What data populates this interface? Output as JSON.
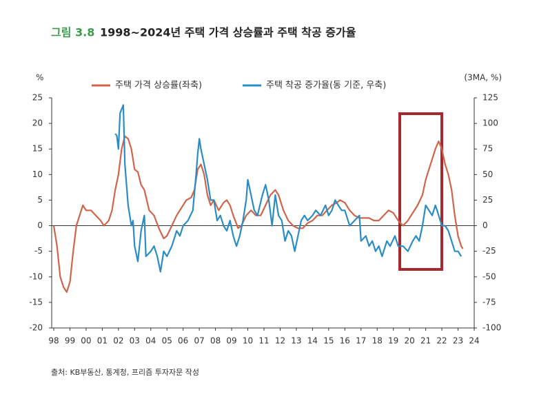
{
  "chart_data": {
    "type": "line",
    "figure_label": "그림 3.8",
    "title": "1998~2024년 주택 가격 상승률과 주택 착공 증가율",
    "y_label": "%",
    "y2_label": "(3MA, %)",
    "source": "출처: KB부동산, 통계청, 프리즘 투자자문 작성",
    "xlim": [
      1998,
      2024
    ],
    "xticks": [
      {
        "value": 1998,
        "label": "98"
      },
      {
        "value": 1999,
        "label": "99"
      },
      {
        "value": 2000,
        "label": "00"
      },
      {
        "value": 2001,
        "label": "01"
      },
      {
        "value": 2002,
        "label": "02"
      },
      {
        "value": 2003,
        "label": "03"
      },
      {
        "value": 2004,
        "label": "04"
      },
      {
        "value": 2005,
        "label": "05"
      },
      {
        "value": 2006,
        "label": "06"
      },
      {
        "value": 2007,
        "label": "07"
      },
      {
        "value": 2008,
        "label": "08"
      },
      {
        "value": 2009,
        "label": "09"
      },
      {
        "value": 2010,
        "label": "10"
      },
      {
        "value": 2011,
        "label": "11"
      },
      {
        "value": 2012,
        "label": "12"
      },
      {
        "value": 2013,
        "label": "13"
      },
      {
        "value": 2014,
        "label": "14"
      },
      {
        "value": 2015,
        "label": "15"
      },
      {
        "value": 2016,
        "label": "16"
      },
      {
        "value": 2017,
        "label": "17"
      },
      {
        "value": 2018,
        "label": "18"
      },
      {
        "value": 2019,
        "label": "19"
      },
      {
        "value": 2020,
        "label": "20"
      },
      {
        "value": 2021,
        "label": "21"
      },
      {
        "value": 2022,
        "label": "22"
      },
      {
        "value": 2023,
        "label": "23"
      },
      {
        "value": 2024,
        "label": "24"
      }
    ],
    "ylim": [
      -20,
      25
    ],
    "yticks": [
      25,
      20,
      15,
      10,
      5,
      0,
      -5,
      -10,
      -15,
      -20
    ],
    "y2lim": [
      -100,
      125
    ],
    "y2ticks": [
      125,
      100,
      75,
      50,
      25,
      0,
      -25,
      -50,
      -75,
      -100
    ],
    "series": [
      {
        "name": "주택 가격 상승률(좌축)",
        "color": "#d0644a",
        "axis": "y",
        "x": [
          1998.0,
          1998.2,
          1998.4,
          1998.6,
          1998.8,
          1999.0,
          1999.2,
          1999.4,
          1999.6,
          1999.8,
          2000.0,
          2000.3,
          2000.6,
          2000.9,
          2001.1,
          2001.4,
          2001.6,
          2001.8,
          2002.0,
          2002.2,
          2002.4,
          2002.6,
          2002.8,
          2003.0,
          2003.2,
          2003.4,
          2003.6,
          2003.9,
          2004.2,
          2004.5,
          2004.8,
          2005.0,
          2005.3,
          2005.6,
          2005.9,
          2006.2,
          2006.5,
          2006.7,
          2006.9,
          2007.1,
          2007.3,
          2007.5,
          2007.7,
          2007.9,
          2008.2,
          2008.5,
          2008.7,
          2008.9,
          2009.1,
          2009.4,
          2009.6,
          2009.9,
          2010.2,
          2010.5,
          2010.8,
          2011.1,
          2011.4,
          2011.7,
          2011.9,
          2012.2,
          2012.5,
          2012.8,
          2013.1,
          2013.4,
          2013.7,
          2014.0,
          2014.3,
          2014.6,
          2014.9,
          2015.2,
          2015.5,
          2015.7,
          2016.0,
          2016.3,
          2016.6,
          2016.9,
          2017.2,
          2017.5,
          2017.8,
          2018.1,
          2018.4,
          2018.7,
          2019.0,
          2019.3,
          2019.6,
          2019.9,
          2020.2,
          2020.5,
          2020.8,
          2021.0,
          2021.2,
          2021.4,
          2021.6,
          2021.8,
          2022.0,
          2022.2,
          2022.4,
          2022.6,
          2022.8,
          2023.0,
          2023.2,
          2023.3
        ],
        "values": [
          0,
          -4,
          -10,
          -12,
          -13,
          -11,
          -5,
          0,
          2,
          4,
          3,
          3,
          2,
          1,
          0,
          1,
          3,
          7,
          10,
          15,
          17.5,
          17,
          15,
          11,
          10.5,
          8,
          7,
          3,
          2,
          -0.5,
          -2.5,
          -2,
          0,
          2,
          3.5,
          5,
          5.5,
          7,
          11,
          12,
          10,
          6,
          4,
          5,
          3,
          4.5,
          5,
          4,
          2,
          -0.5,
          0,
          2,
          3,
          2,
          2,
          4,
          6,
          7,
          6,
          3,
          1,
          0,
          -0.5,
          -0.5,
          0.5,
          1,
          2,
          2,
          3,
          4,
          4.5,
          5,
          4.5,
          3,
          2,
          1.5,
          1.5,
          1.5,
          1,
          1,
          2,
          3,
          2.5,
          1,
          0,
          1,
          2.5,
          4,
          6,
          9,
          11,
          13,
          15,
          16.5,
          15,
          12,
          10,
          7,
          2,
          -2,
          -4,
          -4.5
        ]
      },
      {
        "name": "주택 착공 증가율(동 기준, 우축)",
        "color": "#2a8cc4",
        "axis": "y2",
        "x": [
          2001.8,
          2001.9,
          2002.0,
          2002.1,
          2002.3,
          2002.4,
          2002.6,
          2002.8,
          2002.9,
          2003.0,
          2003.2,
          2003.4,
          2003.6,
          2003.7,
          2004.0,
          2004.2,
          2004.4,
          2004.6,
          2004.8,
          2005.0,
          2005.3,
          2005.6,
          2005.8,
          2006.0,
          2006.3,
          2006.6,
          2006.8,
          2006.9,
          2007.0,
          2007.1,
          2007.3,
          2007.5,
          2007.7,
          2007.9,
          2008.1,
          2008.3,
          2008.5,
          2008.7,
          2008.9,
          2009.1,
          2009.3,
          2009.5,
          2009.7,
          2009.9,
          2010.0,
          2010.2,
          2010.4,
          2010.6,
          2010.9,
          2011.1,
          2011.3,
          2011.5,
          2011.7,
          2011.9,
          2012.1,
          2012.3,
          2012.5,
          2012.7,
          2012.9,
          2013.1,
          2013.3,
          2013.5,
          2013.7,
          2014.0,
          2014.2,
          2014.5,
          2014.8,
          2015.0,
          2015.2,
          2015.4,
          2015.6,
          2015.8,
          2016.0,
          2016.3,
          2016.6,
          2016.9,
          2017.0,
          2017.3,
          2017.5,
          2017.7,
          2017.9,
          2018.1,
          2018.3,
          2018.6,
          2018.8,
          2019.1,
          2019.3,
          2019.6,
          2019.9,
          2020.2,
          2020.4,
          2020.6,
          2020.8,
          2021.0,
          2021.2,
          2021.4,
          2021.6,
          2021.8,
          2022.0,
          2022.2,
          2022.4,
          2022.6,
          2022.8,
          2023.0,
          2023.2
        ],
        "values": [
          90,
          88,
          75,
          110,
          118,
          60,
          20,
          0,
          5,
          -20,
          -35,
          -5,
          10,
          -30,
          -25,
          -20,
          -30,
          -45,
          -25,
          -30,
          -20,
          -5,
          -10,
          0,
          5,
          15,
          50,
          70,
          85,
          75,
          60,
          45,
          25,
          25,
          5,
          10,
          0,
          -5,
          5,
          -10,
          -20,
          -10,
          5,
          25,
          45,
          30,
          15,
          10,
          30,
          40,
          25,
          0,
          30,
          10,
          5,
          -15,
          -5,
          -10,
          -25,
          -10,
          5,
          10,
          5,
          10,
          15,
          10,
          20,
          10,
          15,
          25,
          20,
          15,
          15,
          0,
          5,
          10,
          -15,
          -10,
          -20,
          -15,
          -25,
          -20,
          -30,
          -15,
          -20,
          -10,
          -20,
          -20,
          -25,
          -15,
          -10,
          -15,
          0,
          20,
          15,
          10,
          20,
          10,
          0,
          0,
          -5,
          -15,
          -25,
          -25,
          -30
        ]
      }
    ]
  }
}
